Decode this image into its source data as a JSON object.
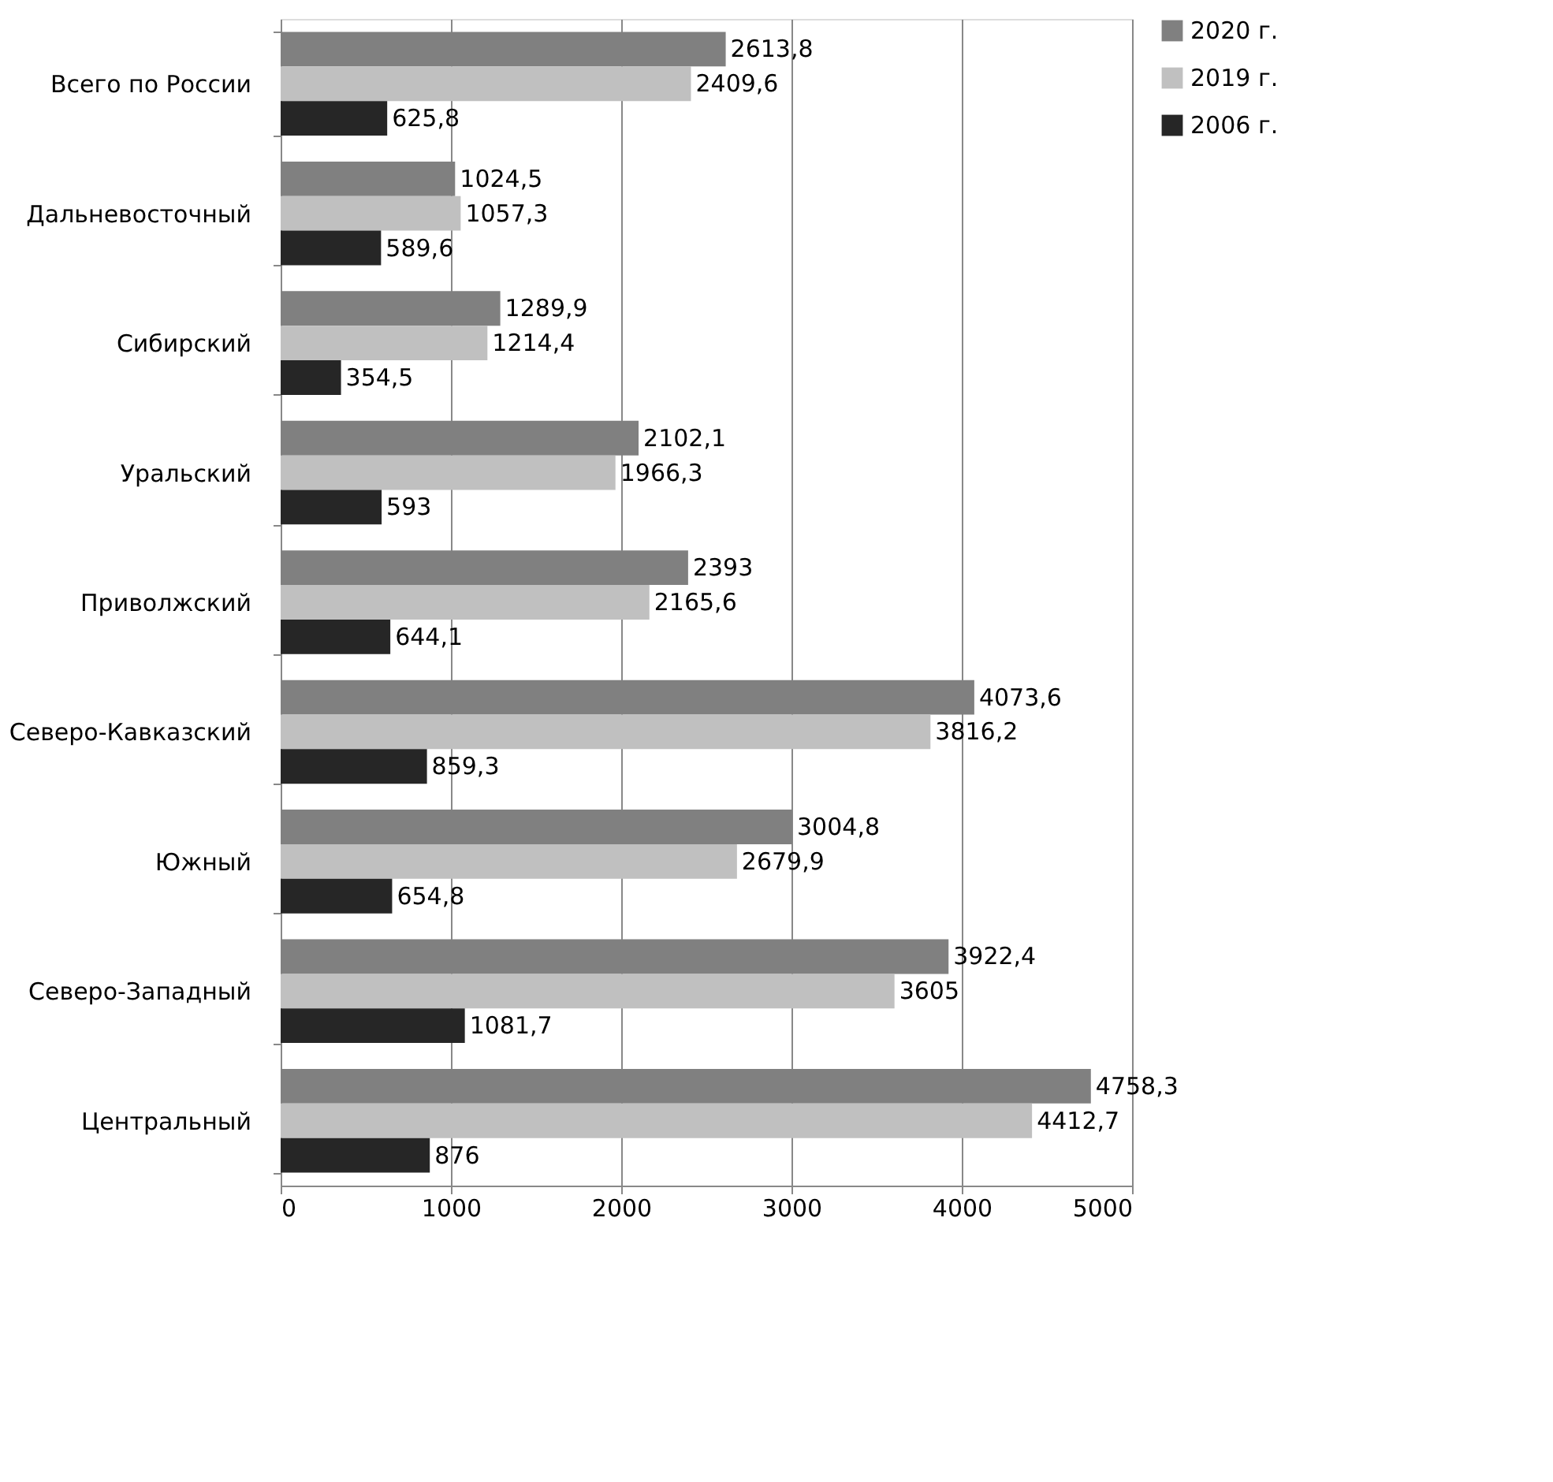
{
  "chart_data": {
    "type": "bar",
    "orientation": "horizontal",
    "categories": [
      "Всего по России",
      "Дальневосточный",
      "Сибирский",
      "Уральский",
      "Приволжский",
      "Северо-Кавказский",
      "Южный",
      "Северо-Западный",
      "Центральный"
    ],
    "series": [
      {
        "name": "2020 г.",
        "color": "#808080",
        "values": [
          2613.8,
          1024.5,
          1289.9,
          2102.1,
          2393,
          4073.6,
          3004.8,
          3922.4,
          4758.3
        ],
        "value_labels": [
          "2613,8",
          "1024,5",
          "1289,9",
          "2102,1",
          "2393",
          "4073,6",
          "3004,8",
          "3922,4",
          "4758,3"
        ]
      },
      {
        "name": "2019 г.",
        "color": "#c0c0c0",
        "values": [
          2409.6,
          1057.3,
          1214.4,
          1966.3,
          2165.6,
          3816.2,
          2679.9,
          3605,
          4412.7
        ],
        "value_labels": [
          "2409,6",
          "1057,3",
          "1214,4",
          "1966,3",
          "2165,6",
          "3816,2",
          "2679,9",
          "3605",
          "4412,7"
        ]
      },
      {
        "name": "2006 г.",
        "color": "#262626",
        "values": [
          625.8,
          589.6,
          354.5,
          593,
          644.1,
          859.3,
          654.8,
          1081.7,
          876
        ],
        "value_labels": [
          "625,8",
          "589,6",
          "354,5",
          "593",
          "644,1",
          "859,3",
          "654,8",
          "1081,7",
          "876"
        ]
      }
    ],
    "xlim": [
      0,
      5000
    ],
    "xticks": [
      0,
      1000,
      2000,
      3000,
      4000,
      5000
    ],
    "grid": "x",
    "legend": "right"
  }
}
